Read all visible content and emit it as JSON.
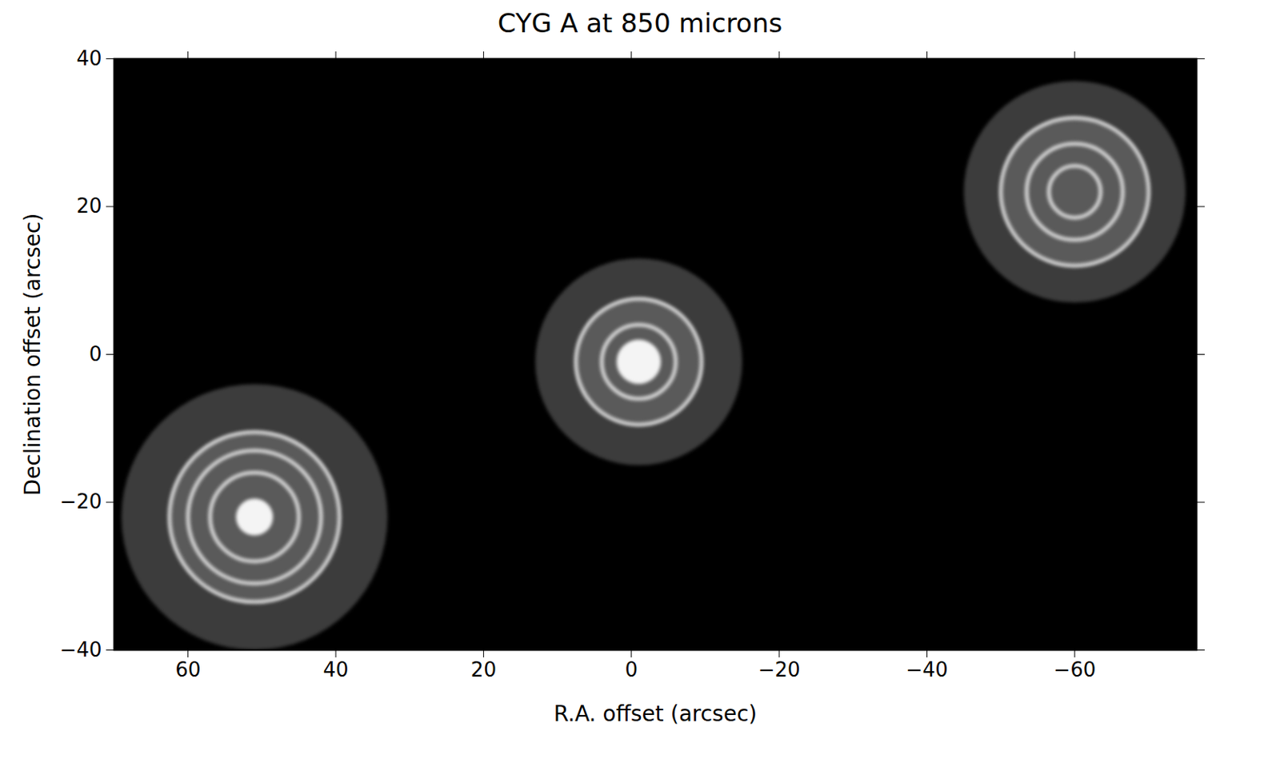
{
  "chart_data": {
    "type": "image",
    "title": "CYG A at 850 microns",
    "x_label": "R.A. offset (arcsec)",
    "y_label": "Declination offset (arcsec)",
    "xlim": [
      70,
      -76.5
    ],
    "ylim": [
      -40,
      40
    ],
    "xticks": [
      60,
      40,
      20,
      0,
      -20,
      -40,
      -60
    ],
    "yticks": [
      -40,
      -20,
      0,
      20,
      40
    ],
    "sources": [
      {
        "x": 51,
        "y": -22,
        "peak_radius": 2.5,
        "rings": [
          6,
          9,
          11.5
        ],
        "halo_radius": 18
      },
      {
        "x": -1,
        "y": -1,
        "peak_radius": 3,
        "rings": [
          5,
          8.5
        ],
        "halo_radius": 14
      },
      {
        "x": -60,
        "y": 22,
        "peak_radius": null,
        "rings": [
          3.5,
          6.5,
          10
        ],
        "halo_radius": 15
      }
    ]
  }
}
